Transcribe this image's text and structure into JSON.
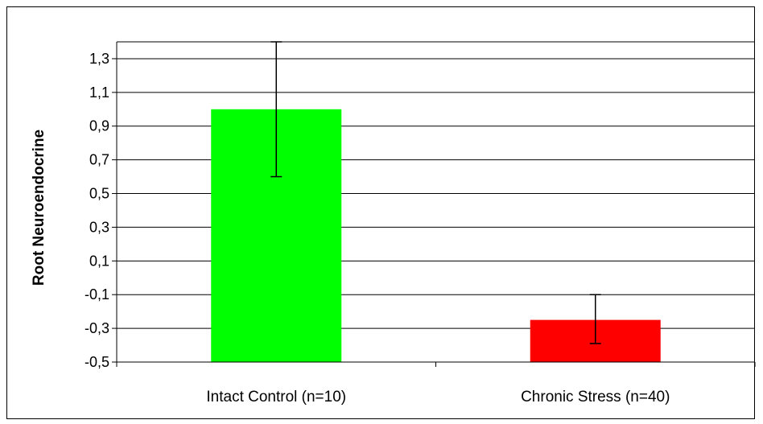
{
  "chart_data": {
    "type": "bar",
    "title": "",
    "xlabel": "",
    "ylabel": "Root Neuroendocrine",
    "categories": [
      "Intact Control (n=10)",
      "Chronic Stress (n=40)"
    ],
    "values": [
      1.0,
      -0.25
    ],
    "error_bars": [
      {
        "low": 0.6,
        "high": 1.4
      },
      {
        "low": -0.39,
        "high": -0.1
      }
    ],
    "colors": [
      "#00ff00",
      "#ff0000"
    ],
    "ylim": [
      -0.5,
      1.4
    ],
    "yticks": [
      -0.5,
      -0.3,
      -0.1,
      0.1,
      0.3,
      0.5,
      0.7,
      0.9,
      1.1,
      1.3
    ],
    "ytick_labels": [
      "-0,5",
      "-0,3",
      "-0,1",
      "0,1",
      "0,3",
      "0,5",
      "0,7",
      "0,9",
      "1,1",
      "1,3"
    ],
    "grid": true,
    "legend": "none"
  }
}
